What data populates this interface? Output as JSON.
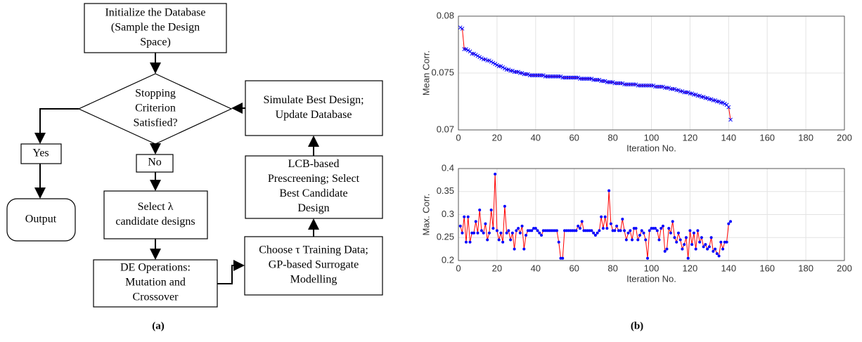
{
  "diagram": {
    "nodes": [
      {
        "lines": [
          "Initialize the Database",
          "(Sample the Design",
          "Space)"
        ]
      },
      {
        "lines": [
          "Stopping",
          "Criterion",
          "Satisfied?"
        ]
      },
      {
        "lines": [
          "Yes"
        ]
      },
      {
        "lines": [
          "No"
        ]
      },
      {
        "lines": [
          "Output"
        ]
      },
      {
        "lines": [
          "Select λ",
          "candidate designs"
        ]
      },
      {
        "lines": [
          "DE Operations:",
          "Mutation and",
          "Crossover"
        ]
      },
      {
        "lines": [
          "Choose τ Training Data;",
          "GP-based Surrogate",
          "Modelling"
        ]
      },
      {
        "lines": [
          "LCB-based",
          "Prescreening; Select",
          "Best Candidate",
          "Design"
        ]
      },
      {
        "lines": [
          "Simulate Best Design;",
          "Update Database"
        ]
      }
    ],
    "caption": "(a)"
  },
  "caption_b": "(b)",
  "chart_data": [
    {
      "type": "line",
      "ylabel": "Mean Corr.",
      "xlabel": "Iteration No.",
      "xlim": [
        0,
        200
      ],
      "xticks": [
        0,
        20,
        40,
        60,
        80,
        100,
        120,
        140,
        160,
        180,
        200
      ],
      "ylim": [
        0.07,
        0.08
      ],
      "yticks": [
        0.07,
        0.075,
        0.08
      ],
      "grid": true,
      "marker": "x",
      "x": [
        1,
        2,
        3,
        4,
        5,
        6,
        7,
        8,
        9,
        10,
        11,
        12,
        13,
        14,
        15,
        16,
        17,
        18,
        19,
        20,
        21,
        22,
        23,
        24,
        25,
        26,
        27,
        28,
        29,
        30,
        31,
        32,
        33,
        34,
        35,
        36,
        37,
        38,
        39,
        40,
        41,
        42,
        43,
        44,
        45,
        46,
        47,
        48,
        49,
        50,
        51,
        52,
        53,
        54,
        55,
        56,
        57,
        58,
        59,
        60,
        61,
        62,
        63,
        64,
        65,
        66,
        67,
        68,
        69,
        70,
        71,
        72,
        73,
        74,
        75,
        76,
        77,
        78,
        79,
        80,
        81,
        82,
        83,
        84,
        85,
        86,
        87,
        88,
        89,
        90,
        91,
        92,
        93,
        94,
        95,
        96,
        97,
        98,
        99,
        100,
        101,
        102,
        103,
        104,
        105,
        106,
        107,
        108,
        109,
        110,
        111,
        112,
        113,
        114,
        115,
        116,
        117,
        118,
        119,
        120,
        121,
        122,
        123,
        124,
        125,
        126,
        127,
        128,
        129,
        130,
        131,
        132,
        133,
        134,
        135,
        136,
        137,
        138,
        139,
        140,
        141
      ],
      "series": [
        {
          "color": "#ff0000",
          "marker_color": "#0000ff",
          "values": [
            0.079,
            0.0789,
            0.0771,
            0.0771,
            0.077,
            0.0769,
            0.0767,
            0.0767,
            0.0766,
            0.0765,
            0.0764,
            0.0763,
            0.0762,
            0.0762,
            0.0761,
            0.0761,
            0.076,
            0.0759,
            0.0758,
            0.0757,
            0.0756,
            0.0756,
            0.0755,
            0.0754,
            0.0753,
            0.0753,
            0.0752,
            0.0752,
            0.0751,
            0.0751,
            0.0751,
            0.075,
            0.075,
            0.0749,
            0.0749,
            0.0749,
            0.0748,
            0.0748,
            0.0748,
            0.0748,
            0.0748,
            0.0748,
            0.0748,
            0.0748,
            0.0747,
            0.0747,
            0.0747,
            0.0747,
            0.0747,
            0.0747,
            0.0747,
            0.0747,
            0.0747,
            0.0746,
            0.0746,
            0.0746,
            0.0746,
            0.0746,
            0.0746,
            0.0746,
            0.0746,
            0.0746,
            0.0745,
            0.0745,
            0.0745,
            0.0745,
            0.0745,
            0.0745,
            0.0745,
            0.0744,
            0.0744,
            0.0744,
            0.0744,
            0.0743,
            0.0743,
            0.0743,
            0.0742,
            0.0742,
            0.0742,
            0.0742,
            0.0741,
            0.0741,
            0.0741,
            0.0741,
            0.0741,
            0.074,
            0.074,
            0.074,
            0.074,
            0.074,
            0.074,
            0.074,
            0.0739,
            0.0739,
            0.0739,
            0.0739,
            0.0739,
            0.0739,
            0.0739,
            0.0739,
            0.0739,
            0.0738,
            0.0738,
            0.0738,
            0.0738,
            0.0738,
            0.0737,
            0.0737,
            0.0737,
            0.0736,
            0.0736,
            0.0736,
            0.0735,
            0.0735,
            0.0734,
            0.0734,
            0.0733,
            0.0733,
            0.0733,
            0.0732,
            0.0732,
            0.0731,
            0.0731,
            0.073,
            0.073,
            0.0729,
            0.0729,
            0.0728,
            0.0728,
            0.0727,
            0.0727,
            0.0726,
            0.0726,
            0.0725,
            0.0725,
            0.0724,
            0.0724,
            0.0723,
            0.0722,
            0.072,
            0.0709
          ]
        }
      ]
    },
    {
      "type": "line",
      "ylabel": "Max. Corr.",
      "xlabel": "Iteration No.",
      "xlim": [
        0,
        200
      ],
      "xticks": [
        0,
        20,
        40,
        60,
        80,
        100,
        120,
        140,
        160,
        180,
        200
      ],
      "ylim": [
        0.2,
        0.4
      ],
      "yticks": [
        0.2,
        0.25,
        0.3,
        0.35,
        0.4
      ],
      "grid": true,
      "marker": "dot",
      "x": [
        1,
        2,
        3,
        4,
        5,
        6,
        7,
        8,
        9,
        10,
        11,
        12,
        13,
        14,
        15,
        16,
        17,
        18,
        19,
        20,
        21,
        22,
        23,
        24,
        25,
        26,
        27,
        28,
        29,
        30,
        31,
        32,
        33,
        34,
        35,
        36,
        37,
        38,
        39,
        40,
        41,
        42,
        43,
        44,
        45,
        46,
        47,
        48,
        49,
        50,
        51,
        52,
        53,
        54,
        55,
        56,
        57,
        58,
        59,
        60,
        61,
        62,
        63,
        64,
        65,
        66,
        67,
        68,
        69,
        70,
        71,
        72,
        73,
        74,
        75,
        76,
        77,
        78,
        79,
        80,
        81,
        82,
        83,
        84,
        85,
        86,
        87,
        88,
        89,
        90,
        91,
        92,
        93,
        94,
        95,
        96,
        97,
        98,
        99,
        100,
        101,
        102,
        103,
        104,
        105,
        106,
        107,
        108,
        109,
        110,
        111,
        112,
        113,
        114,
        115,
        116,
        117,
        118,
        119,
        120,
        121,
        122,
        123,
        124,
        125,
        126,
        127,
        128,
        129,
        130,
        131,
        132,
        133,
        134,
        135,
        136,
        137,
        138,
        139,
        140,
        141
      ],
      "series": [
        {
          "color": "#ff0000",
          "marker_color": "#0000ff",
          "values": [
            0.275,
            0.26,
            0.295,
            0.24,
            0.295,
            0.24,
            0.26,
            0.26,
            0.285,
            0.26,
            0.31,
            0.265,
            0.26,
            0.28,
            0.245,
            0.26,
            0.31,
            0.27,
            0.388,
            0.265,
            0.245,
            0.26,
            0.24,
            0.318,
            0.26,
            0.265,
            0.245,
            0.26,
            0.225,
            0.265,
            0.27,
            0.26,
            0.275,
            0.225,
            0.255,
            0.265,
            0.265,
            0.265,
            0.27,
            0.27,
            0.265,
            0.26,
            0.255,
            0.265,
            0.265,
            0.265,
            0.265,
            0.265,
            0.265,
            0.265,
            0.265,
            0.24,
            0.205,
            0.205,
            0.265,
            0.265,
            0.265,
            0.265,
            0.265,
            0.265,
            0.265,
            0.275,
            0.27,
            0.285,
            0.265,
            0.265,
            0.265,
            0.265,
            0.265,
            0.26,
            0.255,
            0.26,
            0.265,
            0.295,
            0.27,
            0.295,
            0.27,
            0.352,
            0.28,
            0.265,
            0.265,
            0.275,
            0.265,
            0.265,
            0.29,
            0.265,
            0.245,
            0.26,
            0.265,
            0.245,
            0.27,
            0.27,
            0.245,
            0.255,
            0.265,
            0.26,
            0.245,
            0.205,
            0.265,
            0.27,
            0.27,
            0.27,
            0.265,
            0.245,
            0.27,
            0.275,
            0.22,
            0.225,
            0.27,
            0.26,
            0.285,
            0.25,
            0.24,
            0.26,
            0.245,
            0.225,
            0.235,
            0.25,
            0.205,
            0.265,
            0.235,
            0.26,
            0.225,
            0.265,
            0.24,
            0.25,
            0.23,
            0.235,
            0.225,
            0.23,
            0.25,
            0.22,
            0.225,
            0.215,
            0.21,
            0.24,
            0.225,
            0.24,
            0.24,
            0.28,
            0.285
          ]
        }
      ]
    }
  ]
}
